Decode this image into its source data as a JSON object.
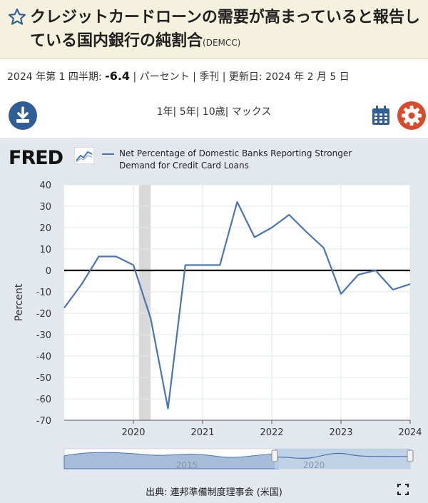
{
  "header": {
    "title": "クレジットカードローンの需要が高まっていると報告している国内銀行の純割合",
    "series_code": "(DEMCC)"
  },
  "meta": {
    "period": "2024 年第 1 四半期:",
    "value": "-6.4",
    "rest": "| パーセント | 季刊 | 更新日: 2024 年 2 月 5 日"
  },
  "ranges": [
    "1年",
    "5年",
    "10歳",
    "マックス"
  ],
  "logo": "FRED",
  "source": "出典: 連邦準備制度理事会 (米国)",
  "colors": {
    "series": "#4a75b0",
    "accent_blue": "#2f5e97",
    "accent_orange": "#d84a2a",
    "recession": "#d9d9d9"
  },
  "icons": [
    "star-icon",
    "download-icon",
    "calendar-icon",
    "gear-icon",
    "fullscreen-icon"
  ],
  "chart_data": {
    "type": "line",
    "title": "",
    "ylabel": "Percent",
    "ylim": [
      -70,
      40
    ],
    "yticks": [
      40,
      30,
      20,
      10,
      0,
      -10,
      -20,
      -30,
      -40,
      -50,
      -60,
      -70
    ],
    "xticks": [
      "2020",
      "2021",
      "2022",
      "2023",
      "2024"
    ],
    "xlim": [
      2019.0,
      2024.0
    ],
    "series": [
      {
        "name": "Net Percentage of Domestic Banks Reporting Stronger Demand for Credit Card Loans",
        "x": [
          2019.0,
          2019.25,
          2019.5,
          2019.75,
          2020.0,
          2020.25,
          2020.5,
          2020.75,
          2021.0,
          2021.25,
          2021.5,
          2021.75,
          2022.0,
          2022.25,
          2022.5,
          2022.75,
          2023.0,
          2023.25,
          2023.5,
          2023.75,
          2024.0
        ],
        "values": [
          -17.5,
          -6.5,
          6.5,
          6.5,
          2.5,
          -22.5,
          -64.5,
          2.5,
          2.5,
          2.5,
          32.0,
          15.5,
          20.0,
          26.0,
          18.0,
          10.5,
          -11.0,
          -2.0,
          0.0,
          -9.0,
          -6.4
        ]
      }
    ],
    "recessions": [
      [
        2020.08,
        2020.25
      ]
    ],
    "navigator_labels": [
      "2015",
      "2020"
    ],
    "grid": true
  }
}
